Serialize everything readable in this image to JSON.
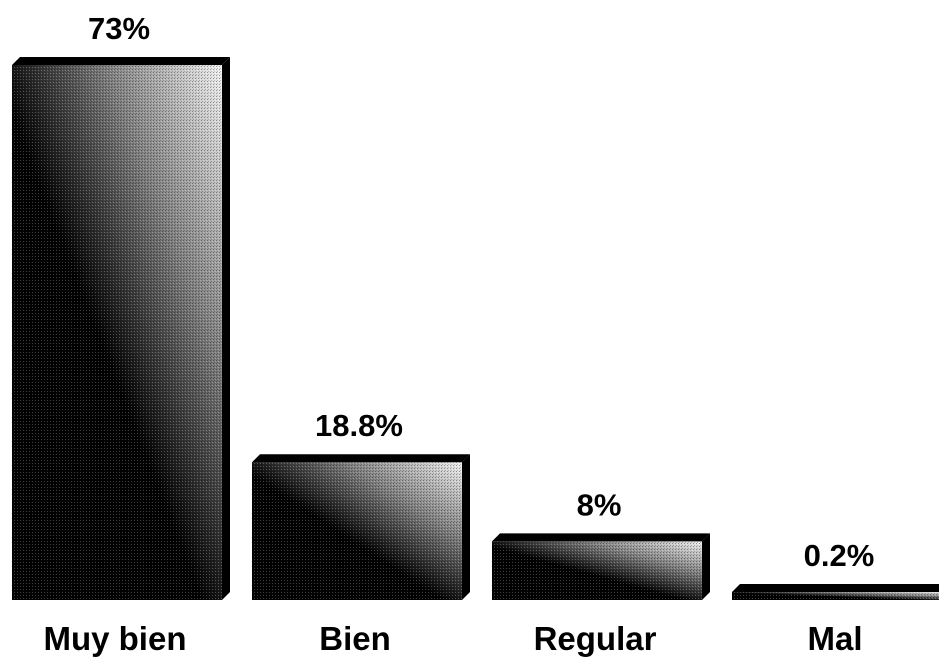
{
  "chart_data": {
    "type": "bar",
    "categories": [
      "Muy bien",
      "Bien",
      "Regular",
      "Mal"
    ],
    "values": [
      73,
      18.8,
      8,
      0.2
    ],
    "data_labels": [
      "73%",
      "18.8%",
      "8%",
      "0.2%"
    ],
    "title": "",
    "xlabel": "",
    "ylabel": "",
    "ylim": [
      0,
      73
    ],
    "grid": false,
    "legend": "none",
    "style": "3d-gradient",
    "colors": {
      "bar_dark": "#000000",
      "bar_mid": "#808080",
      "bar_light": "#f2f2f2",
      "text": "#000000",
      "background": "#ffffff"
    }
  }
}
